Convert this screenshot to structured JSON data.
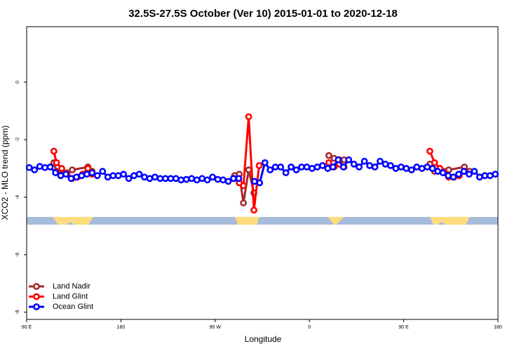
{
  "chart_data": {
    "type": "line",
    "title": "32.5S-27.5S October (Ver 10)   2015-01-01 to 2020-12-18",
    "x_label": "Longitude",
    "y_label": "XCO2 - MLO trend (ppm)",
    "xlim": [
      90,
      540
    ],
    "ylim": [
      -8.25,
      1.93
    ],
    "xticks": [
      {
        "value": 90,
        "label": "90 E"
      },
      {
        "value": 180,
        "label": "180"
      },
      {
        "value": 270,
        "label": "90 W"
      },
      {
        "value": 360,
        "label": "0"
      },
      {
        "value": 450,
        "label": "90 E"
      },
      {
        "value": 540,
        "label": "180"
      }
    ],
    "yticks": [
      0,
      -2,
      -4,
      -6,
      -8
    ],
    "legend": "bottom-left",
    "series": [
      {
        "name": "Land Nadir",
        "color": "#a52a2a",
        "x": [
          116,
          118.5,
          123.5,
          128.5,
          133.5,
          148.5,
          152.5,
          null,
          288.5,
          293,
          297,
          302,
          307,
          null,
          378.5,
          383.5,
          388.5,
          393,
          null,
          475,
          479.5,
          484.5,
          493,
          508,
          513
        ],
        "values": [
          -2.8,
          -3.1,
          -3.05,
          -3.15,
          -3.05,
          -2.95,
          -3.1,
          null,
          -3.25,
          -3.2,
          -4.2,
          -3.05,
          -3.85,
          null,
          -2.55,
          -2.65,
          -2.7,
          -2.7,
          null,
          -2.85,
          -3.1,
          -3.0,
          -3.05,
          -2.95,
          -3.1
        ]
      },
      {
        "name": "Land Glint",
        "color": "#ff0000",
        "x": [
          116,
          118.5,
          123.5,
          128.5,
          133.5,
          138.5,
          143.5,
          148.5,
          152.5,
          null,
          288.5,
          293,
          297,
          302,
          307,
          312,
          null,
          378.5,
          383.5,
          388.5,
          393,
          null,
          475,
          479.5,
          484.5,
          489,
          493,
          498,
          503,
          508
        ],
        "values": [
          -2.4,
          -2.8,
          -3.0,
          -3.2,
          -3.35,
          -3.3,
          -3.2,
          -3.0,
          -3.2,
          null,
          -3.35,
          -3.5,
          -3.6,
          -1.2,
          -4.45,
          -2.9,
          null,
          -2.8,
          -2.95,
          -2.85,
          -2.95,
          null,
          -2.4,
          -2.8,
          -3.0,
          -3.15,
          -3.3,
          -3.3,
          -3.25,
          -3.1
        ]
      },
      {
        "name": "Ocean Glint",
        "color": "#0000ff",
        "x": [
          92.5,
          97.5,
          102.5,
          107.5,
          112.5,
          117.5,
          122.5,
          127.5,
          132.5,
          137.5,
          142.5,
          147.5,
          152.5,
          157.5,
          162.5,
          167.5,
          172.5,
          177.5,
          182.5,
          187.5,
          192.5,
          197.5,
          202.5,
          207.5,
          212.5,
          217.5,
          222.5,
          227.5,
          232.5,
          237.5,
          242.5,
          247.5,
          252.5,
          257.5,
          262.5,
          267.5,
          272.5,
          277.5,
          282.5,
          287.5,
          292.5,
          297.5,
          302.5,
          307.5,
          312.5,
          317.5,
          322.5,
          327.5,
          332.5,
          337.5,
          342.5,
          347.5,
          352.5,
          357.5,
          362.5,
          367.5,
          372.5,
          377.5,
          382.5,
          387.5,
          392.5,
          397.5,
          402.5,
          407.5,
          412.5,
          417.5,
          422.5,
          427.5,
          432.5,
          437.5,
          442.5,
          447.5,
          452.5,
          457.5,
          462.5,
          467.5,
          472.5,
          477.5,
          482.5,
          487.5,
          492.5,
          497.5,
          502.5,
          507.5,
          512.5,
          517.5,
          522.5,
          527.5,
          532.5,
          537.5
        ],
        "values": [
          -2.97,
          -3.05,
          -2.93,
          -2.97,
          -2.95,
          -3.15,
          -3.25,
          -3.2,
          -3.35,
          -3.3,
          -3.25,
          -3.2,
          -3.15,
          -3.25,
          -3.1,
          -3.3,
          -3.25,
          -3.25,
          -3.2,
          -3.35,
          -3.25,
          -3.2,
          -3.3,
          -3.35,
          -3.3,
          -3.35,
          -3.35,
          -3.35,
          -3.35,
          -3.4,
          -3.38,
          -3.35,
          -3.4,
          -3.35,
          -3.4,
          -3.3,
          -3.38,
          -3.4,
          -3.45,
          -3.35,
          -3.35,
          null,
          null,
          -3.45,
          -3.5,
          -2.8,
          -3.05,
          -2.95,
          -2.95,
          -3.15,
          -2.95,
          -3.05,
          -2.95,
          -2.95,
          -3.0,
          -2.95,
          -2.9,
          -3.0,
          -2.95,
          -2.7,
          -2.95,
          -2.7,
          -2.85,
          -2.95,
          -2.75,
          -2.9,
          -2.95,
          -2.75,
          -2.85,
          -2.9,
          -3.0,
          -2.95,
          -3.0,
          -3.05,
          -2.95,
          -3.0,
          -2.95,
          -3.0,
          -3.1,
          -3.15,
          -3.25,
          -3.3,
          -3.2,
          -3.1,
          -3.2,
          -3.1,
          -3.3,
          -3.25,
          -3.25,
          -3.2
        ]
      }
    ]
  }
}
